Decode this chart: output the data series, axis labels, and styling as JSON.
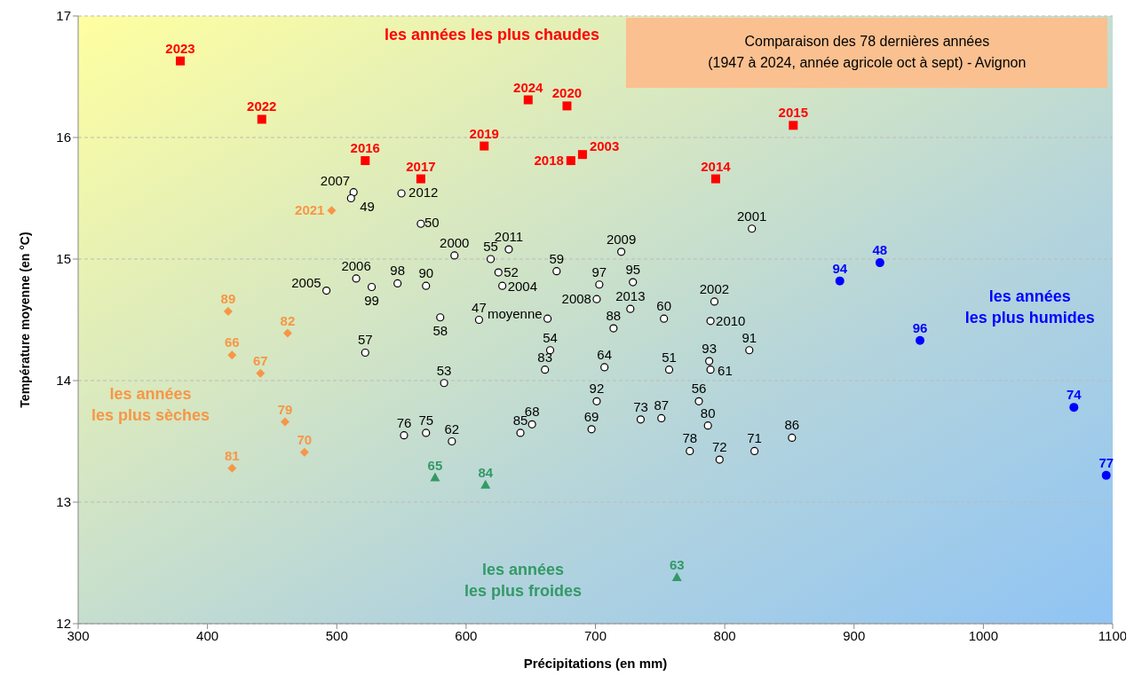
{
  "chart_data": {
    "type": "scatter",
    "title": "Comparaison des 78 dernières années",
    "subtitle": "(1947 à 2024, année agricole oct à sept) - Avignon",
    "xlabel": "Précipitations (en mm)",
    "ylabel": "Température moyenne (en °C)",
    "xlim": [
      300,
      1100
    ],
    "xticks": [
      300,
      400,
      500,
      600,
      700,
      800,
      900,
      1000,
      1100
    ],
    "ylim": [
      12,
      17
    ],
    "yticks": [
      12,
      13,
      14,
      15,
      16,
      17
    ],
    "grid": "y",
    "series": [
      {
        "name": "les années les plus chaudes",
        "color": "#ff0000",
        "marker": "square",
        "x": [
          379,
          442,
          648,
          678,
          853,
          522,
          614,
          681,
          690,
          565,
          793
        ],
        "values": [
          16.63,
          16.15,
          16.31,
          16.26,
          16.1,
          15.81,
          15.93,
          15.81,
          15.86,
          15.66,
          15.66
        ]
      },
      {
        "name": "les années\nles plus sèches",
        "color": "#f79646",
        "marker": "diamond",
        "x": [
          496,
          416,
          419,
          462,
          441,
          460,
          475,
          419
        ],
        "values": [
          15.4,
          14.57,
          14.21,
          14.39,
          14.06,
          13.66,
          13.41,
          13.28
        ]
      },
      {
        "name": "les années\nles plus froides",
        "color": "#339966",
        "marker": "triangle",
        "x": [
          576,
          615,
          763
        ],
        "values": [
          13.2,
          13.14,
          12.38
        ]
      },
      {
        "name": "les années\nles plus humides",
        "color": "#0000ff",
        "marker": "circle",
        "x": [
          889,
          920,
          951,
          1070,
          1095
        ],
        "values": [
          14.82,
          14.97,
          14.33,
          13.78,
          13.22
        ]
      },
      {
        "color": "#000000",
        "marker": "circle",
        "x": [
          513,
          511,
          550,
          565,
          821,
          591,
          619,
          633,
          720,
          670,
          625,
          703,
          729,
          547,
          569,
          515,
          492,
          527,
          628,
          701,
          727,
          792,
          663,
          610,
          580,
          753,
          789,
          714,
          665,
          522,
          819,
          788,
          661,
          707,
          757,
          789,
          583,
          701,
          780,
          735,
          751,
          787,
          651,
          697,
          642,
          552,
          569,
          589,
          852,
          773,
          823,
          796
        ],
        "values": [
          15.55,
          15.5,
          15.54,
          15.29,
          15.25,
          15.03,
          15.0,
          15.08,
          15.06,
          14.9,
          14.89,
          14.79,
          14.81,
          14.8,
          14.78,
          14.84,
          14.74,
          14.77,
          14.78,
          14.67,
          14.59,
          14.65,
          14.51,
          14.5,
          14.52,
          14.51,
          14.49,
          14.43,
          14.25,
          14.23,
          14.25,
          14.16,
          14.09,
          14.11,
          14.09,
          14.09,
          13.98,
          13.83,
          13.83,
          13.68,
          13.69,
          13.63,
          13.64,
          13.6,
          13.57,
          13.55,
          13.57,
          13.5,
          13.53,
          13.42,
          13.42,
          13.35
        ]
      }
    ],
    "annotations": [
      {
        "text": "2023",
        "x": 379,
        "y": 16.63
      },
      {
        "text": "2022",
        "x": 442,
        "y": 16.15
      },
      {
        "text": "2024",
        "x": 648,
        "y": 16.31
      },
      {
        "text": "2020",
        "x": 678,
        "y": 16.26
      },
      {
        "text": "2015",
        "x": 853,
        "y": 16.1
      },
      {
        "text": "2016",
        "x": 522,
        "y": 15.81
      },
      {
        "text": "2019",
        "x": 614,
        "y": 15.93
      },
      {
        "text": "2018",
        "x": 681,
        "y": 15.81
      },
      {
        "text": "2003",
        "x": 690,
        "y": 15.86
      },
      {
        "text": "2017",
        "x": 565,
        "y": 15.66
      },
      {
        "text": "2014",
        "x": 793,
        "y": 15.66
      },
      {
        "text": "2021",
        "x": 496,
        "y": 15.4
      },
      {
        "text": "89",
        "x": 416,
        "y": 14.57
      },
      {
        "text": "66",
        "x": 419,
        "y": 14.21
      },
      {
        "text": "82",
        "x": 462,
        "y": 14.39
      },
      {
        "text": "67",
        "x": 441,
        "y": 14.06
      },
      {
        "text": "79",
        "x": 460,
        "y": 13.66
      },
      {
        "text": "70",
        "x": 475,
        "y": 13.41
      },
      {
        "text": "81",
        "x": 419,
        "y": 13.28
      },
      {
        "text": "65",
        "x": 576,
        "y": 13.2
      },
      {
        "text": "84",
        "x": 615,
        "y": 13.14
      },
      {
        "text": "63",
        "x": 763,
        "y": 12.38
      },
      {
        "text": "94",
        "x": 889,
        "y": 14.82
      },
      {
        "text": "48",
        "x": 920,
        "y": 14.97
      },
      {
        "text": "96",
        "x": 951,
        "y": 14.33
      },
      {
        "text": "74",
        "x": 1070,
        "y": 13.78
      },
      {
        "text": "77",
        "x": 1095,
        "y": 13.22
      },
      {
        "text": "2007",
        "x": 513,
        "y": 15.55
      },
      {
        "text": "49",
        "x": 511,
        "y": 15.5
      },
      {
        "text": "2012",
        "x": 550,
        "y": 15.54
      },
      {
        "text": "50",
        "x": 565,
        "y": 15.29
      },
      {
        "text": "2001",
        "x": 821,
        "y": 15.25
      },
      {
        "text": "2000",
        "x": 591,
        "y": 15.03
      },
      {
        "text": "55",
        "x": 619,
        "y": 15.0
      },
      {
        "text": "2011",
        "x": 633,
        "y": 15.08
      },
      {
        "text": "2009",
        "x": 720,
        "y": 15.06
      },
      {
        "text": "59",
        "x": 670,
        "y": 14.9
      },
      {
        "text": "52",
        "x": 625,
        "y": 14.89
      },
      {
        "text": "97",
        "x": 703,
        "y": 14.79
      },
      {
        "text": "95",
        "x": 729,
        "y": 14.81
      },
      {
        "text": "98",
        "x": 547,
        "y": 14.8
      },
      {
        "text": "90",
        "x": 569,
        "y": 14.78
      },
      {
        "text": "2006",
        "x": 515,
        "y": 14.84
      },
      {
        "text": "2005",
        "x": 492,
        "y": 14.74
      },
      {
        "text": "99",
        "x": 527,
        "y": 14.77
      },
      {
        "text": "2004",
        "x": 628,
        "y": 14.78
      },
      {
        "text": "2008",
        "x": 701,
        "y": 14.67
      },
      {
        "text": "2013",
        "x": 727,
        "y": 14.59
      },
      {
        "text": "2002",
        "x": 792,
        "y": 14.65
      },
      {
        "text": "moyenne",
        "x": 663,
        "y": 14.51
      },
      {
        "text": "47",
        "x": 610,
        "y": 14.5
      },
      {
        "text": "58",
        "x": 580,
        "y": 14.52
      },
      {
        "text": "60",
        "x": 753,
        "y": 14.51
      },
      {
        "text": "2010",
        "x": 789,
        "y": 14.49
      },
      {
        "text": "88",
        "x": 714,
        "y": 14.43
      },
      {
        "text": "54",
        "x": 665,
        "y": 14.25
      },
      {
        "text": "57",
        "x": 522,
        "y": 14.23
      },
      {
        "text": "91",
        "x": 819,
        "y": 14.25
      },
      {
        "text": "93",
        "x": 788,
        "y": 14.16
      },
      {
        "text": "83",
        "x": 661,
        "y": 14.09
      },
      {
        "text": "64",
        "x": 707,
        "y": 14.11
      },
      {
        "text": "51",
        "x": 757,
        "y": 14.09
      },
      {
        "text": "61",
        "x": 789,
        "y": 14.09
      },
      {
        "text": "53",
        "x": 583,
        "y": 13.98
      },
      {
        "text": "92",
        "x": 701,
        "y": 13.83
      },
      {
        "text": "56",
        "x": 780,
        "y": 13.83
      },
      {
        "text": "73",
        "x": 735,
        "y": 13.68
      },
      {
        "text": "87",
        "x": 751,
        "y": 13.69
      },
      {
        "text": "80",
        "x": 787,
        "y": 13.63
      },
      {
        "text": "68",
        "x": 651,
        "y": 13.64
      },
      {
        "text": "69",
        "x": 697,
        "y": 13.6
      },
      {
        "text": "85",
        "x": 642,
        "y": 13.57
      },
      {
        "text": "76",
        "x": 552,
        "y": 13.55
      },
      {
        "text": "75",
        "x": 569,
        "y": 13.57
      },
      {
        "text": "62",
        "x": 589,
        "y": 13.5
      },
      {
        "text": "86",
        "x": 852,
        "y": 13.53
      },
      {
        "text": "78",
        "x": 773,
        "y": 13.42
      },
      {
        "text": "71",
        "x": 823,
        "y": 13.42
      },
      {
        "text": "72",
        "x": 796,
        "y": 13.35
      }
    ]
  }
}
